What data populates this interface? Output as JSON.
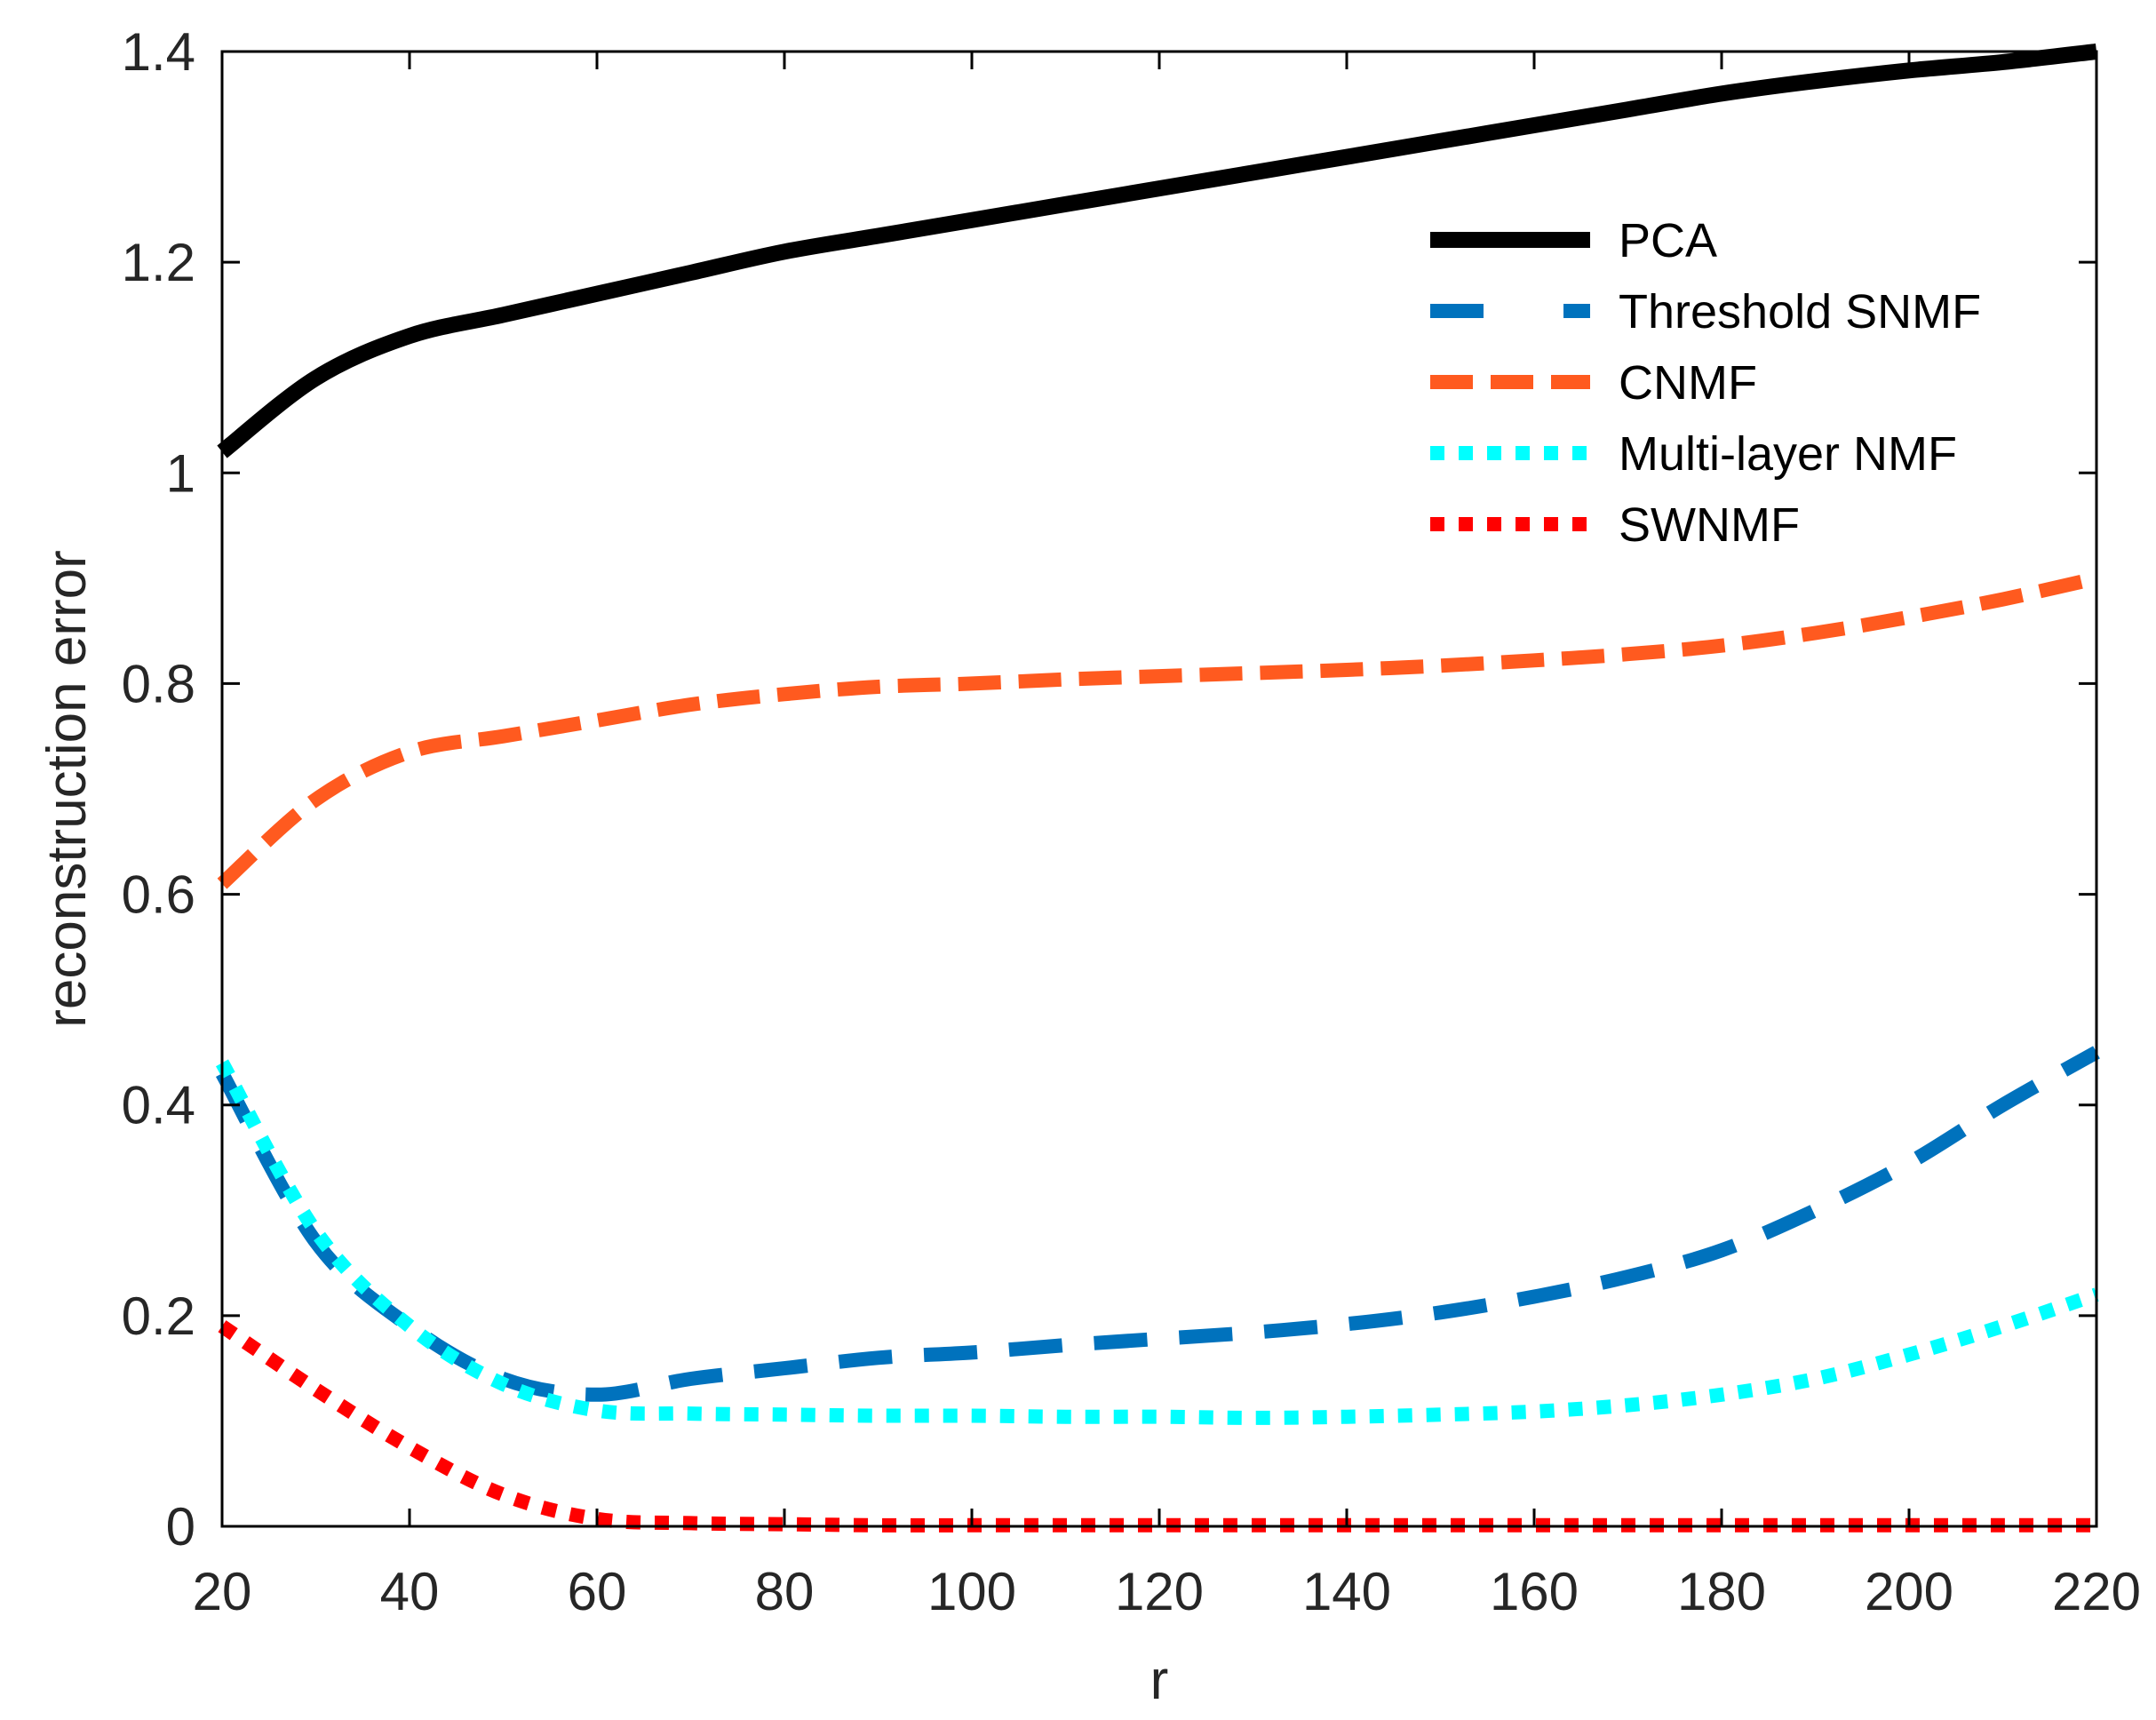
{
  "chart_data": {
    "type": "line",
    "title": "",
    "xlabel": "r",
    "ylabel": "reconstruction error",
    "xlim": [
      20,
      220
    ],
    "ylim": [
      0,
      1.4
    ],
    "xticks": [
      20,
      40,
      60,
      80,
      100,
      120,
      140,
      160,
      180,
      200,
      220
    ],
    "yticks": [
      0,
      0.2,
      0.4,
      0.6,
      0.8,
      1,
      1.2,
      1.4
    ],
    "xtick_labels": [
      "20",
      "40",
      "60",
      "80",
      "100",
      "120",
      "140",
      "160",
      "180",
      "200",
      "220"
    ],
    "ytick_labels": [
      "0",
      "0.2",
      "0.4",
      "0.6",
      "0.8",
      "1",
      "1.2",
      "1.4"
    ],
    "grid": false,
    "legend_position": "top-right",
    "x": [
      20,
      30,
      40,
      50,
      60,
      70,
      80,
      90,
      100,
      110,
      120,
      130,
      140,
      150,
      160,
      170,
      180,
      190,
      200,
      210,
      220
    ],
    "series": [
      {
        "name": "PCA",
        "color": "#000000",
        "style": "solid",
        "values": [
          1.02,
          1.09,
          1.13,
          1.15,
          1.17,
          1.19,
          1.21,
          1.225,
          1.24,
          1.255,
          1.27,
          1.285,
          1.3,
          1.315,
          1.33,
          1.345,
          1.36,
          1.372,
          1.382,
          1.39,
          1.4
        ]
      },
      {
        "name": "Threshold SNMF",
        "color": "#0072BD",
        "style": "dash",
        "values": [
          0.43,
          0.27,
          0.19,
          0.14,
          0.125,
          0.14,
          0.15,
          0.16,
          0.165,
          0.172,
          0.178,
          0.184,
          0.192,
          0.203,
          0.218,
          0.237,
          0.262,
          0.3,
          0.345,
          0.4,
          0.45
        ]
      },
      {
        "name": "CNMF",
        "color": "#FF5A1F",
        "style": "dashdense",
        "values": [
          0.61,
          0.69,
          0.735,
          0.75,
          0.765,
          0.78,
          0.79,
          0.797,
          0.8,
          0.804,
          0.807,
          0.81,
          0.813,
          0.817,
          0.822,
          0.828,
          0.836,
          0.848,
          0.863,
          0.88,
          0.9
        ]
      },
      {
        "name": "Multi-layer NMF",
        "color": "#00FFFF",
        "style": "dot",
        "values": [
          0.44,
          0.28,
          0.19,
          0.135,
          0.11,
          0.107,
          0.106,
          0.105,
          0.105,
          0.104,
          0.104,
          0.103,
          0.104,
          0.106,
          0.109,
          0.115,
          0.125,
          0.14,
          0.163,
          0.19,
          0.22
        ]
      },
      {
        "name": "SWNMF",
        "color": "#FF0000",
        "style": "dot",
        "values": [
          0.19,
          0.13,
          0.075,
          0.03,
          0.007,
          0.003,
          0.002,
          0.001,
          0.001,
          0.001,
          0.001,
          0.001,
          0.001,
          0.001,
          0.001,
          0.001,
          0.001,
          0.001,
          0.001,
          0.001,
          0.001
        ]
      }
    ]
  }
}
